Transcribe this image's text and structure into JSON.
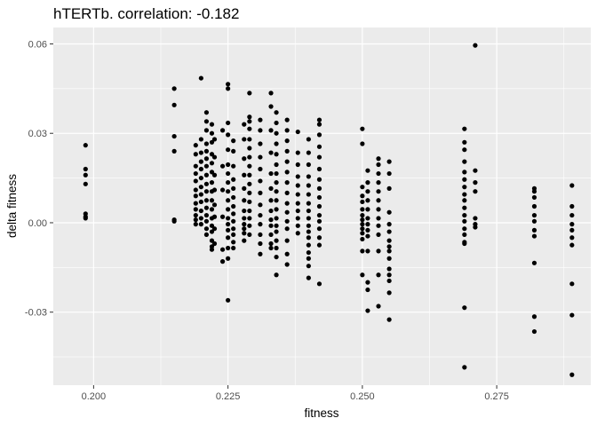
{
  "chart_data": {
    "type": "scatter",
    "title": "hTERTb. correlation: -0.182",
    "xlabel": "fitness",
    "ylabel": "delta fitness",
    "xlim": [
      0.1925,
      0.2925
    ],
    "ylim": [
      -0.0545,
      0.0655
    ],
    "x_ticks": [
      0.2,
      0.225,
      0.25,
      0.275
    ],
    "x_tick_labels": [
      "0.200",
      "0.225",
      "0.250",
      "0.275"
    ],
    "y_ticks": [
      -0.03,
      0.0,
      0.03,
      0.06
    ],
    "y_tick_labels": [
      "-0.03",
      "0.00",
      "0.03",
      "0.06"
    ],
    "grid": true,
    "panel_background": "#ebebeb",
    "grid_color": "#ffffff",
    "point_color": "#000000",
    "x": [
      0.1985,
      0.1985,
      0.1985,
      0.1985,
      0.1985,
      0.1985,
      0.1985,
      0.215,
      0.215,
      0.215,
      0.215,
      0.215,
      0.215,
      0.219,
      0.219,
      0.219,
      0.219,
      0.219,
      0.219,
      0.219,
      0.219,
      0.219,
      0.219,
      0.219,
      0.219,
      0.22,
      0.22,
      0.22,
      0.22,
      0.22,
      0.22,
      0.22,
      0.22,
      0.22,
      0.22,
      0.22,
      0.22,
      0.221,
      0.221,
      0.221,
      0.221,
      0.221,
      0.221,
      0.221,
      0.221,
      0.221,
      0.221,
      0.221,
      0.221,
      0.221,
      0.221,
      0.221,
      0.221,
      0.222,
      0.222,
      0.222,
      0.222,
      0.222,
      0.222,
      0.222,
      0.222,
      0.222,
      0.222,
      0.222,
      0.222,
      0.222,
      0.222,
      0.222,
      0.222,
      0.2225,
      0.2225,
      0.2225,
      0.2225,
      0.2225,
      0.2225,
      0.2225,
      0.2225,
      0.224,
      0.224,
      0.224,
      0.224,
      0.224,
      0.224,
      0.225,
      0.225,
      0.225,
      0.225,
      0.225,
      0.225,
      0.225,
      0.225,
      0.225,
      0.225,
      0.225,
      0.225,
      0.225,
      0.225,
      0.225,
      0.225,
      0.225,
      0.225,
      0.226,
      0.226,
      0.226,
      0.226,
      0.226,
      0.226,
      0.226,
      0.226,
      0.226,
      0.226,
      0.226,
      0.226,
      0.226,
      0.228,
      0.228,
      0.228,
      0.228,
      0.228,
      0.228,
      0.228,
      0.228,
      0.228,
      0.228,
      0.228,
      0.228,
      0.229,
      0.229,
      0.229,
      0.229,
      0.229,
      0.229,
      0.229,
      0.229,
      0.229,
      0.229,
      0.229,
      0.229,
      0.229,
      0.229,
      0.229,
      0.229,
      0.231,
      0.231,
      0.231,
      0.231,
      0.231,
      0.231,
      0.231,
      0.231,
      0.231,
      0.231,
      0.231,
      0.231,
      0.231,
      0.233,
      0.233,
      0.233,
      0.233,
      0.233,
      0.233,
      0.233,
      0.233,
      0.233,
      0.233,
      0.233,
      0.233,
      0.233,
      0.234,
      0.234,
      0.234,
      0.234,
      0.234,
      0.234,
      0.234,
      0.234,
      0.234,
      0.234,
      0.234,
      0.234,
      0.234,
      0.234,
      0.234,
      0.234,
      0.234,
      0.234,
      0.236,
      0.236,
      0.236,
      0.236,
      0.236,
      0.236,
      0.236,
      0.236,
      0.236,
      0.236,
      0.236,
      0.236,
      0.236,
      0.236,
      0.236,
      0.238,
      0.238,
      0.238,
      0.238,
      0.238,
      0.238,
      0.238,
      0.238,
      0.238,
      0.238,
      0.238,
      0.24,
      0.24,
      0.24,
      0.24,
      0.24,
      0.24,
      0.24,
      0.24,
      0.24,
      0.24,
      0.24,
      0.24,
      0.24,
      0.24,
      0.24,
      0.24,
      0.24,
      0.242,
      0.242,
      0.242,
      0.242,
      0.242,
      0.242,
      0.242,
      0.242,
      0.242,
      0.242,
      0.242,
      0.242,
      0.242,
      0.242,
      0.242,
      0.242,
      0.25,
      0.25,
      0.25,
      0.25,
      0.25,
      0.25,
      0.25,
      0.25,
      0.25,
      0.25,
      0.25,
      0.25,
      0.25,
      0.25,
      0.251,
      0.251,
      0.251,
      0.251,
      0.251,
      0.251,
      0.251,
      0.251,
      0.251,
      0.251,
      0.251,
      0.251,
      0.251,
      0.253,
      0.253,
      0.253,
      0.253,
      0.253,
      0.253,
      0.253,
      0.253,
      0.253,
      0.253,
      0.253,
      0.253,
      0.253,
      0.255,
      0.255,
      0.255,
      0.255,
      0.255,
      0.255,
      0.255,
      0.255,
      0.255,
      0.255,
      0.255,
      0.255,
      0.255,
      0.255,
      0.255,
      0.269,
      0.269,
      0.269,
      0.269,
      0.269,
      0.269,
      0.269,
      0.269,
      0.269,
      0.269,
      0.269,
      0.269,
      0.269,
      0.269,
      0.269,
      0.269,
      0.269,
      0.269,
      0.271,
      0.271,
      0.271,
      0.271,
      0.271,
      0.271,
      0.271,
      0.282,
      0.282,
      0.282,
      0.282,
      0.282,
      0.282,
      0.282,
      0.282,
      0.282,
      0.282,
      0.282,
      0.289,
      0.289,
      0.289,
      0.289,
      0.289,
      0.289,
      0.289,
      0.289,
      0.289,
      0.289
    ],
    "y": [
      0.026,
      0.018,
      0.016,
      0.013,
      0.003,
      0.002,
      0.0015,
      0.045,
      0.0395,
      0.029,
      0.024,
      0.001,
      0.0005,
      0.026,
      0.023,
      0.019,
      0.0165,
      0.014,
      0.011,
      0.009,
      0.0065,
      0.0045,
      0.0025,
      0.001,
      -0.0005,
      0.0485,
      0.028,
      0.0235,
      0.0205,
      0.018,
      0.015,
      0.012,
      0.0095,
      0.007,
      0.004,
      0.0015,
      -0.0005,
      0.037,
      0.034,
      0.031,
      0.0265,
      0.024,
      0.0215,
      0.019,
      0.016,
      0.013,
      0.0105,
      0.0075,
      0.005,
      0.0025,
      0.0005,
      -0.002,
      -0.004,
      0.033,
      0.03,
      0.027,
      0.023,
      0.02,
      0.017,
      0.0135,
      0.0105,
      0.0075,
      0.0045,
      0.0015,
      -0.001,
      -0.003,
      -0.006,
      -0.008,
      -0.009,
      0.028,
      0.022,
      0.016,
      0.011,
      0.006,
      0.002,
      -0.002,
      -0.007,
      0.031,
      0.019,
      0.011,
      0.002,
      -0.009,
      -0.013,
      0.0465,
      0.045,
      0.0335,
      0.0295,
      0.0245,
      0.0195,
      0.0165,
      0.0135,
      0.0105,
      0.0075,
      0.0045,
      0.0015,
      -0.0005,
      -0.0025,
      -0.005,
      -0.0085,
      -0.012,
      -0.026,
      0.0275,
      0.024,
      0.019,
      0.0145,
      0.0115,
      0.0085,
      0.0055,
      0.003,
      0.0005,
      -0.002,
      -0.004,
      -0.0065,
      -0.0085,
      0.033,
      0.028,
      0.0215,
      0.016,
      0.0115,
      0.0075,
      0.004,
      0.0015,
      -0.0005,
      -0.002,
      -0.0035,
      -0.006,
      0.0435,
      0.0355,
      0.034,
      0.0315,
      0.028,
      0.025,
      0.022,
      0.019,
      0.016,
      0.013,
      0.01,
      0.007,
      0.004,
      0.0015,
      -0.001,
      -0.004,
      0.0345,
      0.031,
      0.0265,
      0.022,
      0.018,
      0.014,
      0.01,
      0.006,
      0.0025,
      -0.0005,
      -0.004,
      -0.007,
      -0.0105,
      0.0435,
      0.039,
      0.031,
      0.0235,
      0.0165,
      0.0115,
      0.0075,
      0.004,
      0.001,
      -0.001,
      -0.004,
      -0.007,
      -0.0085,
      0.037,
      0.0335,
      0.03,
      0.0265,
      0.023,
      0.0195,
      0.0165,
      0.0135,
      0.0105,
      0.0075,
      0.0045,
      0.0015,
      -0.001,
      -0.003,
      -0.006,
      -0.0085,
      -0.0115,
      -0.0175,
      0.0345,
      0.031,
      0.0275,
      0.024,
      0.0205,
      0.017,
      0.0135,
      0.01,
      0.0065,
      0.0035,
      0.0005,
      -0.002,
      -0.006,
      -0.0105,
      -0.014,
      0.0305,
      0.0235,
      0.0195,
      0.0155,
      0.0125,
      0.0095,
      0.0065,
      0.004,
      0.0015,
      -0.001,
      -0.0035,
      0.028,
      0.0235,
      0.0195,
      0.0155,
      0.0125,
      0.0095,
      0.0065,
      0.004,
      0.0015,
      -0.001,
      -0.003,
      -0.005,
      -0.0075,
      -0.01,
      -0.012,
      -0.0145,
      -0.0185,
      0.0345,
      0.033,
      0.0295,
      0.0255,
      0.022,
      0.018,
      0.0145,
      0.0115,
      0.0085,
      0.0055,
      0.0025,
      0.0005,
      -0.002,
      -0.005,
      -0.0075,
      -0.0205,
      0.0315,
      0.0265,
      0.012,
      0.009,
      0.007,
      0.0045,
      0.0025,
      0.001,
      -0.0005,
      -0.002,
      -0.0035,
      -0.0055,
      -0.0095,
      -0.0175,
      0.0175,
      0.0135,
      0.0105,
      0.0075,
      0.0045,
      0.0015,
      -0.0005,
      -0.0025,
      -0.0045,
      -0.0095,
      -0.02,
      -0.0225,
      -0.0295,
      0.0215,
      0.0195,
      0.0165,
      0.0135,
      0.0105,
      0.0075,
      0.0045,
      0.0015,
      -0.001,
      -0.004,
      -0.0095,
      -0.0175,
      -0.028,
      0.0205,
      0.0165,
      0.0115,
      0.0035,
      -0.0005,
      -0.003,
      -0.006,
      -0.008,
      -0.0095,
      -0.012,
      -0.0155,
      -0.0175,
      -0.0195,
      -0.0235,
      -0.0325,
      0.0315,
      0.027,
      0.0245,
      0.0205,
      0.017,
      0.0145,
      0.012,
      0.0095,
      0.0075,
      0.005,
      0.0025,
      0.0005,
      -0.002,
      -0.004,
      -0.0065,
      -0.007,
      -0.0285,
      -0.0485,
      0.0595,
      0.0175,
      0.0135,
      0.0105,
      0.0015,
      -0.0005,
      -0.0015,
      0.0115,
      0.0105,
      0.0085,
      0.0055,
      0.0025,
      0.0005,
      -0.0025,
      -0.0045,
      -0.0135,
      -0.0315,
      -0.0365,
      0.0125,
      0.0055,
      0.0025,
      -0.0005,
      -0.0025,
      -0.005,
      -0.0075,
      -0.0205,
      -0.031,
      -0.051
    ]
  }
}
